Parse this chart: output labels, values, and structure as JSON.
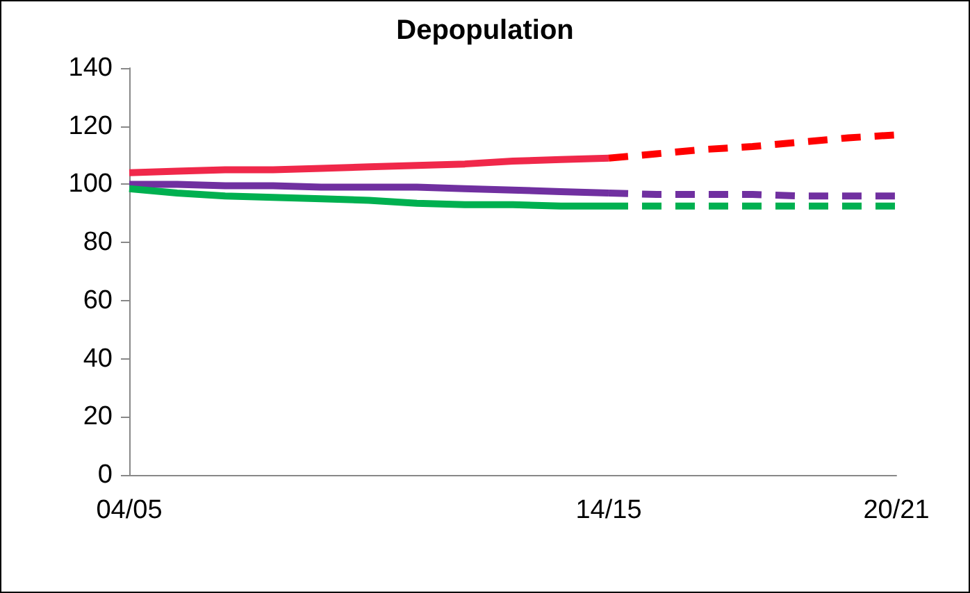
{
  "chart_data": {
    "type": "line",
    "title": "Depopulation",
    "categories": [
      "04/05",
      null,
      null,
      null,
      null,
      null,
      null,
      null,
      null,
      null,
      "14/15",
      null,
      null,
      null,
      null,
      null,
      "20/21"
    ],
    "ylim": [
      0,
      140
    ],
    "yticks": [
      0,
      20,
      40,
      60,
      80,
      100,
      120,
      140
    ],
    "marker": "none",
    "series": [
      {
        "color": "#f0284a",
        "line_style": "solid",
        "values": [
          104,
          104.5,
          105,
          105,
          105.5,
          106,
          106.5,
          107,
          108,
          108.5,
          109,
          null,
          null,
          null,
          null,
          null,
          null
        ]
      },
      {
        "color": "#ff0000",
        "line_style": "dashed",
        "values": [
          null,
          null,
          null,
          null,
          null,
          null,
          null,
          null,
          null,
          null,
          109,
          110.5,
          112,
          113,
          114.5,
          116,
          117
        ]
      },
      {
        "color": "#7030a0",
        "line_style": "solid",
        "values": [
          100,
          100,
          99.5,
          99.5,
          99,
          99,
          99,
          98.5,
          98,
          97.5,
          97,
          null,
          null,
          null,
          null,
          null,
          null
        ]
      },
      {
        "color": "#7030a0",
        "line_style": "dashed",
        "values": [
          null,
          null,
          null,
          null,
          null,
          null,
          null,
          null,
          null,
          null,
          97,
          96.5,
          96.5,
          96.5,
          96,
          96,
          96
        ]
      },
      {
        "color": "#00b050",
        "line_style": "solid",
        "values": [
          98.5,
          97,
          96,
          95.5,
          95,
          94.5,
          93.5,
          93,
          93,
          92.5,
          92.5,
          null,
          null,
          null,
          null,
          null,
          null
        ]
      },
      {
        "color": "#00b050",
        "line_style": "dashed",
        "values": [
          null,
          null,
          null,
          null,
          null,
          null,
          null,
          null,
          null,
          null,
          92.5,
          92.5,
          92.5,
          92.5,
          92.5,
          92.5,
          92.5
        ]
      }
    ]
  }
}
